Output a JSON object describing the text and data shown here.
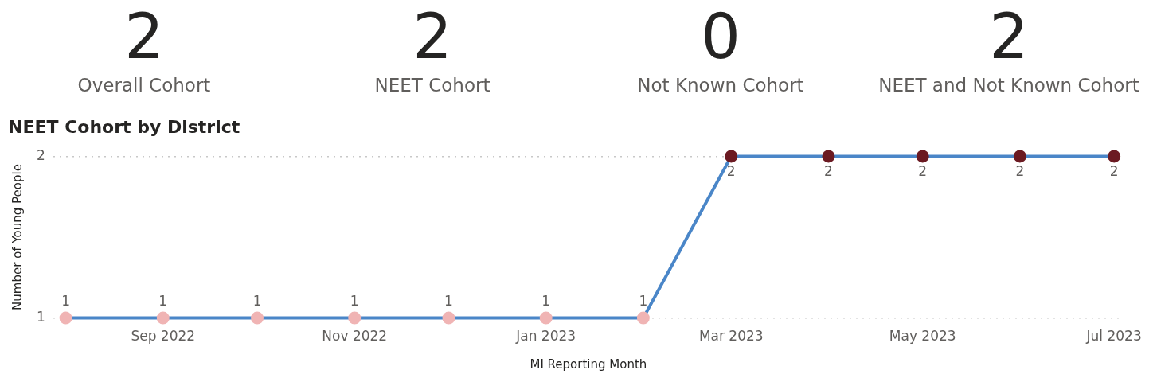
{
  "chart_data": [
    {
      "type": "other",
      "categories": [
        "Overall Cohort",
        "NEET Cohort",
        "Not Known Cohort",
        "NEET and Not Known Cohort"
      ],
      "values": [
        2,
        2,
        0,
        2
      ],
      "data_labels": true
    },
    {
      "type": "line",
      "title": "NEET Cohort by District",
      "xlabel": "MI Reporting Month",
      "ylabel": "Number of Young People",
      "x": [
        "2022-08",
        "2022-09",
        "2022-10",
        "2022-11",
        "2022-12",
        "2023-01",
        "2023-02",
        "2023-03",
        "2023-04",
        "2023-05",
        "2023-06",
        "2023-07"
      ],
      "series": [
        {
          "color": "#4a86c8",
          "colors": [
            "#f0b4b4",
            "#f0b4b4",
            "#f0b4b4",
            "#f0b4b4",
            "#f0b4b4",
            "#f0b4b4",
            "#f0b4b4",
            "#6b1a22",
            "#6b1a22",
            "#6b1a22",
            "#6b1a22",
            "#6b1a22"
          ],
          "values": [
            1,
            1,
            1,
            1,
            1,
            1,
            1,
            2,
            2,
            2,
            2,
            2
          ]
        }
      ],
      "xlim": [
        "2022-07-28",
        "2023-07-04"
      ],
      "xticks": [
        {
          "value": "2022-09",
          "label": "Sep 2022"
        },
        {
          "value": "2022-11",
          "label": "Nov 2022"
        },
        {
          "value": "2023-01",
          "label": "Jan 2023"
        },
        {
          "value": "2023-03",
          "label": "Mar 2023"
        },
        {
          "value": "2023-05",
          "label": "May 2023"
        },
        {
          "value": "2023-07",
          "label": "Jul 2023"
        }
      ],
      "ylim": [
        1,
        2
      ],
      "yticks": [
        1,
        2
      ],
      "grid": "y",
      "legend": false,
      "marker": "circle",
      "line_style": "solid",
      "data_labels": true
    }
  ]
}
